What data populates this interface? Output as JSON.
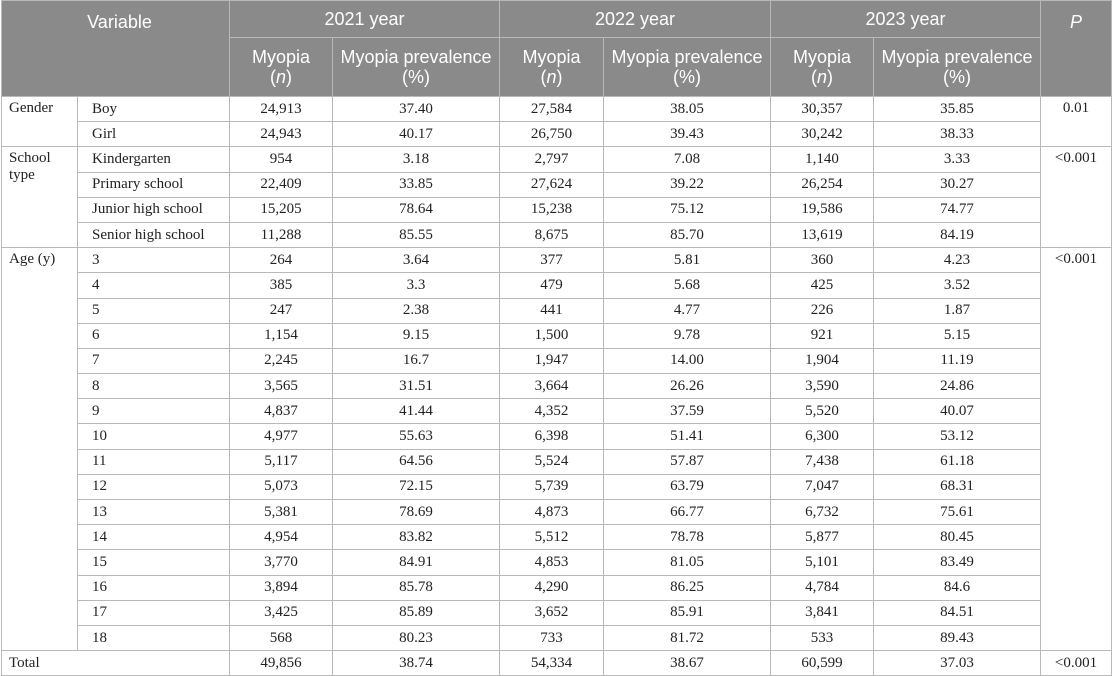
{
  "header": {
    "variable": "Variable",
    "years": [
      "2021 year",
      "2022 year",
      "2023 year"
    ],
    "p": "P",
    "myopia_label": "Myopia",
    "n_open": "(",
    "n_italic": "n",
    "n_close": ")",
    "prevalence_label": "Myopia prevalence (%)"
  },
  "groups": [
    {
      "name": "Gender",
      "p": "0.01",
      "rows": [
        {
          "label": "Boy",
          "values": [
            "24,913",
            "37.40",
            "27,584",
            "38.05",
            "30,357",
            "35.85"
          ]
        },
        {
          "label": "Girl",
          "values": [
            "24,943",
            "40.17",
            "26,750",
            "39.43",
            "30,242",
            "38.33"
          ]
        }
      ]
    },
    {
      "name": "School type",
      "p": "<0.001",
      "rows": [
        {
          "label": "Kindergarten",
          "values": [
            "954",
            "3.18",
            "2,797",
            "7.08",
            "1,140",
            "3.33"
          ]
        },
        {
          "label": "Primary school",
          "values": [
            "22,409",
            "33.85",
            "27,624",
            "39.22",
            "26,254",
            "30.27"
          ]
        },
        {
          "label": "Junior high school",
          "values": [
            "15,205",
            "78.64",
            "15,238",
            "75.12",
            "19,586",
            "74.77"
          ]
        },
        {
          "label": "Senior high school",
          "values": [
            "11,288",
            "85.55",
            "8,675",
            "85.70",
            "13,619",
            "84.19"
          ]
        }
      ]
    },
    {
      "name": "Age (y)",
      "p": "<0.001",
      "rows": [
        {
          "label": "3",
          "values": [
            "264",
            "3.64",
            "377",
            "5.81",
            "360",
            "4.23"
          ]
        },
        {
          "label": "4",
          "values": [
            "385",
            "3.3",
            "479",
            "5.68",
            "425",
            "3.52"
          ]
        },
        {
          "label": "5",
          "values": [
            "247",
            "2.38",
            "441",
            "4.77",
            "226",
            "1.87"
          ]
        },
        {
          "label": "6",
          "values": [
            "1,154",
            "9.15",
            "1,500",
            "9.78",
            "921",
            "5.15"
          ]
        },
        {
          "label": "7",
          "values": [
            "2,245",
            "16.7",
            "1,947",
            "14.00",
            "1,904",
            "11.19"
          ]
        },
        {
          "label": "8",
          "values": [
            "3,565",
            "31.51",
            "3,664",
            "26.26",
            "3,590",
            "24.86"
          ]
        },
        {
          "label": "9",
          "values": [
            "4,837",
            "41.44",
            "4,352",
            "37.59",
            "5,520",
            "40.07"
          ]
        },
        {
          "label": "10",
          "values": [
            "4,977",
            "55.63",
            "6,398",
            "51.41",
            "6,300",
            "53.12"
          ]
        },
        {
          "label": "11",
          "values": [
            "5,117",
            "64.56",
            "5,524",
            "57.87",
            "7,438",
            "61.18"
          ]
        },
        {
          "label": "12",
          "values": [
            "5,073",
            "72.15",
            "5,739",
            "63.79",
            "7,047",
            "68.31"
          ]
        },
        {
          "label": "13",
          "values": [
            "5,381",
            "78.69",
            "4,873",
            "66.77",
            "6,732",
            "75.61"
          ]
        },
        {
          "label": "14",
          "values": [
            "4,954",
            "83.82",
            "5,512",
            "78.78",
            "5,877",
            "80.45"
          ]
        },
        {
          "label": "15",
          "values": [
            "3,770",
            "84.91",
            "4,853",
            "81.05",
            "5,101",
            "83.49"
          ]
        },
        {
          "label": "16",
          "values": [
            "3,894",
            "85.78",
            "4,290",
            "86.25",
            "4,784",
            "84.6"
          ]
        },
        {
          "label": "17",
          "values": [
            "3,425",
            "85.89",
            "3,652",
            "85.91",
            "3,841",
            "84.51"
          ]
        },
        {
          "label": "18",
          "values": [
            "568",
            "80.23",
            "733",
            "81.72",
            "533",
            "89.43"
          ]
        }
      ]
    }
  ],
  "total": {
    "label": "Total",
    "values": [
      "49,856",
      "38.74",
      "54,334",
      "38.67",
      "60,599",
      "37.03"
    ],
    "p": "<0.001"
  }
}
